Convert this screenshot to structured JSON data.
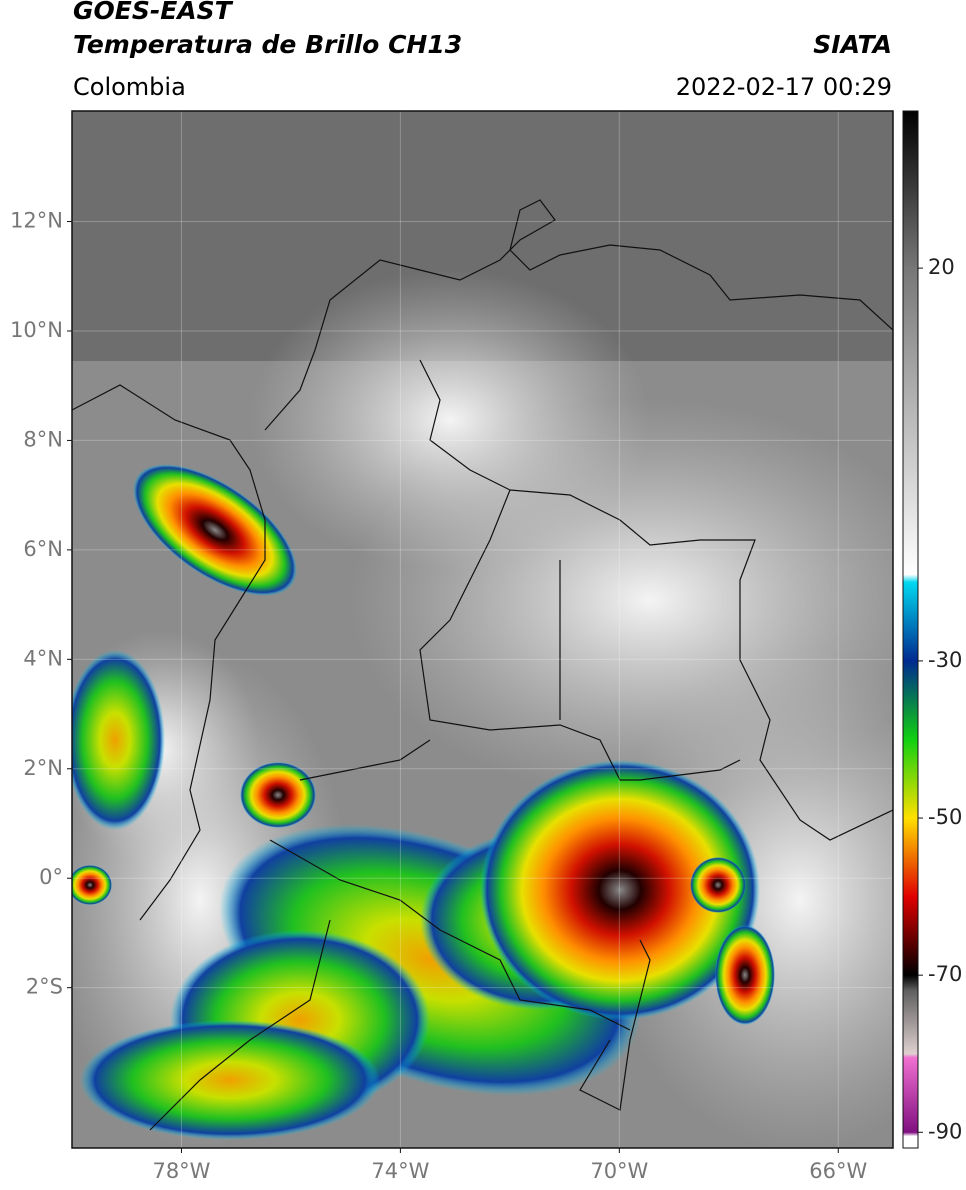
{
  "header": {
    "title": "GOES-EAST",
    "subtitle": "Temperatura de Brillo CH13",
    "source": "SIATA",
    "region": "Colombia",
    "datetime": "2022-02-17 00:29"
  },
  "map": {
    "lon_lim": [
      -80,
      -65
    ],
    "lat_lim": [
      -4.93,
      14.02
    ],
    "lat_ticks": [
      {
        "value": 12,
        "label": "12°N"
      },
      {
        "value": 10,
        "label": "10°N"
      },
      {
        "value": 8,
        "label": "8°N"
      },
      {
        "value": 6,
        "label": "6°N"
      },
      {
        "value": 4,
        "label": "4°N"
      },
      {
        "value": 2,
        "label": "2°N"
      },
      {
        "value": 0,
        "label": "0°"
      },
      {
        "value": -2,
        "label": "2°S"
      }
    ],
    "lon_ticks": [
      {
        "value": -78,
        "label": "78°W"
      },
      {
        "value": -74,
        "label": "74°W"
      },
      {
        "value": -70,
        "label": "70°W"
      },
      {
        "value": -66,
        "label": "66°W"
      }
    ]
  },
  "colorbar": {
    "lim": [
      -92,
      40
    ],
    "ticks": [
      20,
      -30,
      -50,
      -70,
      -90
    ],
    "stops": [
      {
        "value": 40,
        "color": "#000000"
      },
      {
        "value": 20,
        "color": "#777777"
      },
      {
        "value": -19,
        "color": "#ffffff"
      },
      {
        "value": -20,
        "color": "#00d8f0"
      },
      {
        "value": -30,
        "color": "#002a90"
      },
      {
        "value": -40,
        "color": "#10d010"
      },
      {
        "value": -50,
        "color": "#ffe000"
      },
      {
        "value": -60,
        "color": "#e00000"
      },
      {
        "value": -70,
        "color": "#000000"
      },
      {
        "value": -72,
        "color": "#606060"
      },
      {
        "value": -80,
        "color": "#e0d0d0"
      },
      {
        "value": -80.5,
        "color": "#f070d0"
      },
      {
        "value": -90,
        "color": "#801080"
      },
      {
        "value": -90.5,
        "color": "#ffffff"
      },
      {
        "value": -92,
        "color": "#ffffff"
      }
    ]
  }
}
